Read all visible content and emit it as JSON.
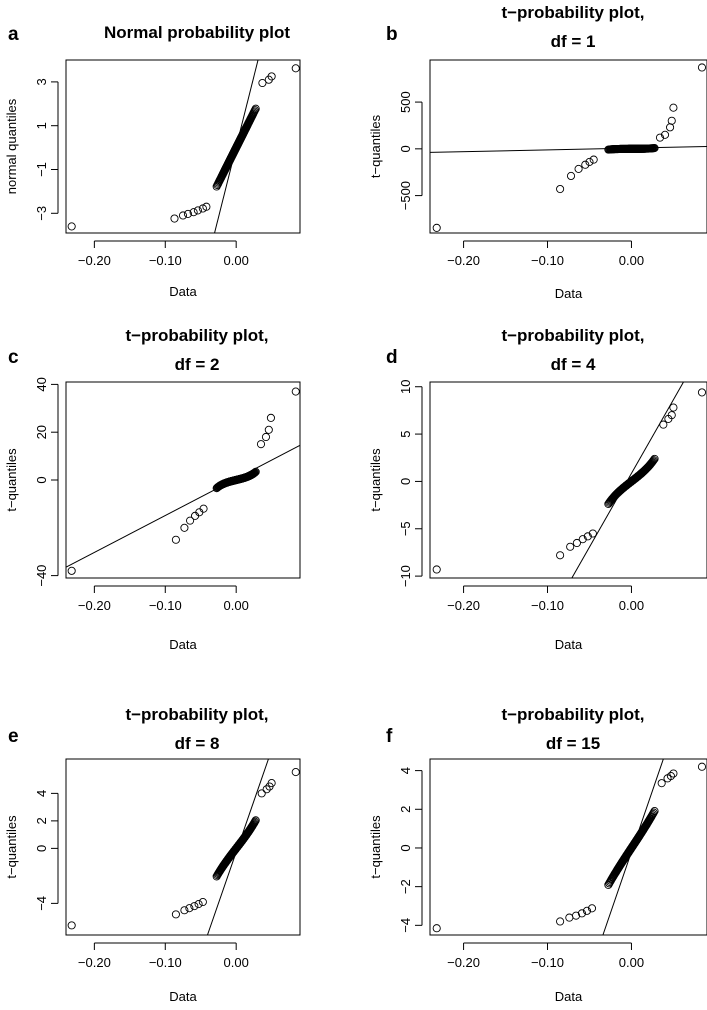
{
  "chart_data": [
    {
      "panel": "a",
      "type": "scatter",
      "title_lines": [
        "Normal probability plot"
      ],
      "xlabel": "Data",
      "ylabel": "normal quantiles",
      "xlim": [
        -0.24,
        0.09
      ],
      "ylim": [
        -3.9,
        4.0
      ],
      "xticks": [
        -0.2,
        -0.1,
        0.0
      ],
      "xtick_labels": [
        "−0.20",
        "−0.10",
        "0.00"
      ],
      "yticks": [
        -3,
        -1,
        1,
        3
      ],
      "ytick_labels": [
        "−3",
        "−1",
        "1",
        "3"
      ],
      "dist": "normal",
      "df": null,
      "tail_points": [
        [
          -0.232,
          -3.6
        ],
        [
          -0.087,
          -3.24
        ],
        [
          -0.075,
          -3.1
        ],
        [
          -0.068,
          -3.03
        ],
        [
          -0.06,
          -2.95
        ],
        [
          -0.054,
          -2.87
        ],
        [
          -0.047,
          -2.78
        ],
        [
          -0.042,
          -2.7
        ],
        [
          0.037,
          2.95
        ],
        [
          0.046,
          3.1
        ],
        [
          0.05,
          3.25
        ],
        [
          0.084,
          3.62
        ]
      ],
      "ref_line": [
        [
          -0.0305,
          -3.9
        ],
        [
          0.0308,
          4.0
        ]
      ]
    },
    {
      "panel": "b",
      "type": "scatter",
      "title_lines": [
        "t−probability plot,",
        "df = 1"
      ],
      "xlabel": "Data",
      "ylabel": "t−quantiles",
      "xlim": [
        -0.24,
        0.09
      ],
      "ylim": [
        -900,
        950
      ],
      "xticks": [
        -0.2,
        -0.1,
        0.0
      ],
      "xtick_labels": [
        "−0.20",
        "−0.10",
        "0.00"
      ],
      "yticks": [
        -500,
        0,
        500
      ],
      "ytick_labels": [
        "−500",
        "0",
        "500"
      ],
      "dist": "t",
      "df": 1,
      "tail_points": [
        [
          -0.232,
          -845
        ],
        [
          -0.085,
          -430
        ],
        [
          -0.072,
          -290
        ],
        [
          -0.063,
          -215
        ],
        [
          -0.055,
          -170
        ],
        [
          -0.05,
          -140
        ],
        [
          -0.045,
          -115
        ],
        [
          0.034,
          120
        ],
        [
          0.04,
          150
        ],
        [
          0.046,
          230
        ],
        [
          0.048,
          300
        ],
        [
          0.05,
          440
        ],
        [
          0.084,
          870
        ]
      ],
      "ref_line": [
        [
          -0.24,
          -38
        ],
        [
          0.09,
          25
        ]
      ]
    },
    {
      "panel": "c",
      "type": "scatter",
      "title_lines": [
        "t−probability plot,",
        "df = 2"
      ],
      "xlabel": "Data",
      "ylabel": "t−quantiles",
      "xlim": [
        -0.24,
        0.09
      ],
      "ylim": [
        -41,
        41
      ],
      "xticks": [
        -0.2,
        -0.1,
        0.0
      ],
      "xtick_labels": [
        "−0.20",
        "−0.10",
        "0.00"
      ],
      "yticks": [
        -40,
        0,
        20,
        40
      ],
      "ytick_labels": [
        "−40",
        "0",
        "20",
        "40"
      ],
      "dist": "t",
      "df": 2,
      "tail_points": [
        [
          -0.232,
          -38
        ],
        [
          -0.085,
          -25
        ],
        [
          -0.073,
          -20
        ],
        [
          -0.065,
          -17
        ],
        [
          -0.058,
          -15
        ],
        [
          -0.052,
          -13.5
        ],
        [
          -0.046,
          -12
        ],
        [
          0.035,
          15
        ],
        [
          0.042,
          18
        ],
        [
          0.046,
          21
        ],
        [
          0.049,
          26
        ],
        [
          0.084,
          37
        ]
      ],
      "ref_line": [
        [
          -0.24,
          -36.5
        ],
        [
          0.09,
          14.5
        ]
      ]
    },
    {
      "panel": "d",
      "type": "scatter",
      "title_lines": [
        "t−probability plot,",
        "df = 4"
      ],
      "xlabel": "Data",
      "ylabel": "t−quantiles",
      "xlim": [
        -0.24,
        0.09
      ],
      "ylim": [
        -10.2,
        10.5
      ],
      "xticks": [
        -0.2,
        -0.1,
        0.0
      ],
      "xtick_labels": [
        "−0.20",
        "−0.10",
        "0.00"
      ],
      "yticks": [
        -10,
        -5,
        0,
        5,
        10
      ],
      "ytick_labels": [
        "−10",
        "−5",
        "0",
        "5",
        "10"
      ],
      "dist": "t",
      "df": 4,
      "tail_points": [
        [
          -0.232,
          -9.3
        ],
        [
          -0.085,
          -7.8
        ],
        [
          -0.073,
          -6.9
        ],
        [
          -0.065,
          -6.5
        ],
        [
          -0.058,
          -6.1
        ],
        [
          -0.052,
          -5.8
        ],
        [
          -0.046,
          -5.5
        ],
        [
          0.038,
          6.0
        ],
        [
          0.044,
          6.6
        ],
        [
          0.048,
          7.0
        ],
        [
          0.05,
          7.8
        ],
        [
          0.084,
          9.4
        ]
      ],
      "ref_line": [
        [
          -0.071,
          -10.2
        ],
        [
          0.062,
          10.5
        ]
      ]
    },
    {
      "panel": "e",
      "type": "scatter",
      "title_lines": [
        "t−probability plot,",
        "df = 8"
      ],
      "xlabel": "Data",
      "ylabel": "t−quantiles",
      "xlim": [
        -0.24,
        0.09
      ],
      "ylim": [
        -6.3,
        6.5
      ],
      "xticks": [
        -0.2,
        -0.1,
        0.0
      ],
      "xtick_labels": [
        "−0.20",
        "−0.10",
        "0.00"
      ],
      "yticks": [
        -4,
        0,
        2,
        4
      ],
      "ytick_labels": [
        "−4",
        "0",
        "2",
        "4"
      ],
      "dist": "t",
      "df": 8,
      "tail_points": [
        [
          -0.232,
          -5.6
        ],
        [
          -0.085,
          -4.8
        ],
        [
          -0.073,
          -4.5
        ],
        [
          -0.066,
          -4.35
        ],
        [
          -0.059,
          -4.2
        ],
        [
          -0.053,
          -4.05
        ],
        [
          -0.047,
          -3.9
        ],
        [
          0.036,
          4.0
        ],
        [
          0.043,
          4.3
        ],
        [
          0.047,
          4.5
        ],
        [
          0.05,
          4.75
        ],
        [
          0.084,
          5.55
        ]
      ],
      "ref_line": [
        [
          -0.0405,
          -6.3
        ],
        [
          0.0455,
          6.5
        ]
      ]
    },
    {
      "panel": "f",
      "type": "scatter",
      "title_lines": [
        "t−probability plot,",
        "df = 15"
      ],
      "xlabel": "Data",
      "ylabel": "t−quantiles",
      "xlim": [
        -0.24,
        0.09
      ],
      "ylim": [
        -4.5,
        4.6
      ],
      "xticks": [
        -0.2,
        -0.1,
        0.0
      ],
      "xtick_labels": [
        "−0.20",
        "−0.10",
        "0.00"
      ],
      "yticks": [
        -4,
        -2,
        0,
        2,
        4
      ],
      "ytick_labels": [
        "−4",
        "−2",
        "0",
        "2",
        "4"
      ],
      "dist": "t",
      "df": 15,
      "tail_points": [
        [
          -0.232,
          -4.15
        ],
        [
          -0.085,
          -3.8
        ],
        [
          -0.074,
          -3.6
        ],
        [
          -0.066,
          -3.5
        ],
        [
          -0.059,
          -3.38
        ],
        [
          -0.053,
          -3.25
        ],
        [
          -0.047,
          -3.12
        ],
        [
          0.036,
          3.35
        ],
        [
          0.043,
          3.6
        ],
        [
          0.047,
          3.72
        ],
        [
          0.05,
          3.85
        ],
        [
          0.084,
          4.2
        ]
      ],
      "ref_line": [
        [
          -0.034,
          -4.5
        ],
        [
          0.038,
          4.6
        ]
      ]
    }
  ]
}
